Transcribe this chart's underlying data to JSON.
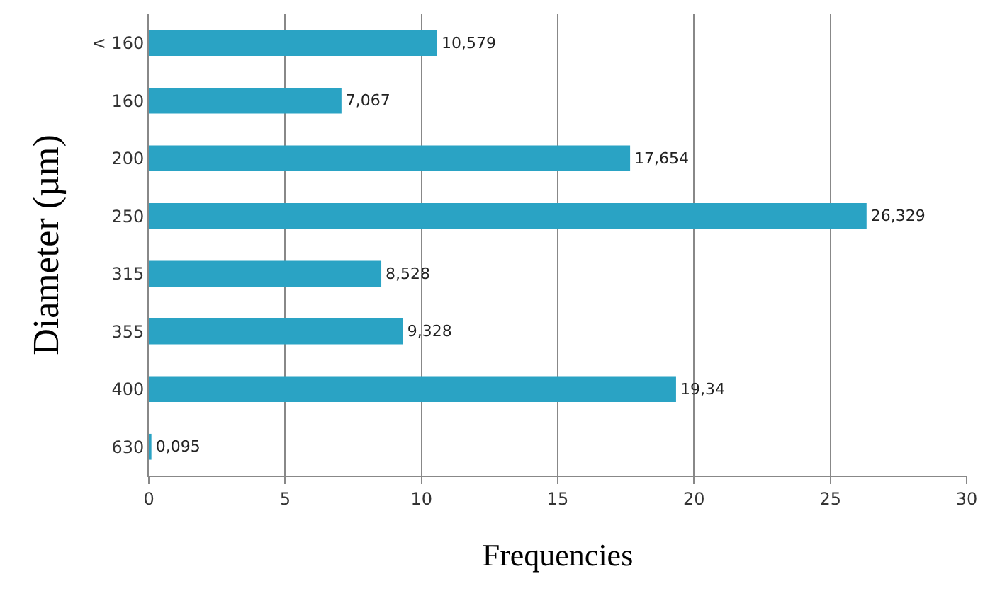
{
  "chart_data": {
    "type": "bar",
    "orientation": "horizontal",
    "xlabel": "Frequencies",
    "ylabel": "Diameter (µm)",
    "categories": [
      "< 160",
      "160",
      "200",
      "250",
      "315",
      "355",
      "400",
      "630"
    ],
    "values": [
      10.579,
      7.067,
      17.654,
      26.329,
      8.528,
      9.328,
      19.34,
      0.095
    ],
    "value_labels": [
      "10,579",
      "7,067",
      "17,654",
      "26,329",
      "8,528",
      "9,328",
      "19,34",
      "0,095"
    ],
    "color": "#2aa3c4",
    "xlim": [
      0,
      30
    ],
    "xticks": [
      0,
      5,
      10,
      15,
      20,
      25,
      30
    ],
    "grid": "x",
    "legend": false
  }
}
